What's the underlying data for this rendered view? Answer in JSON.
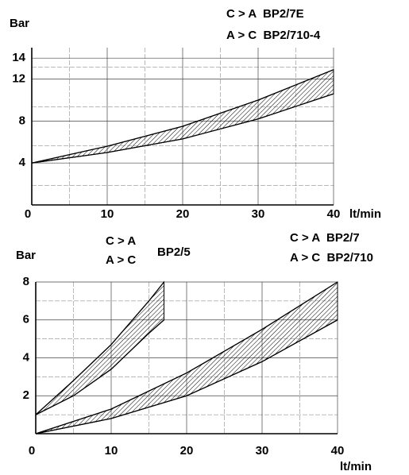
{
  "chart_data": [
    {
      "type": "band",
      "y_label": "Bar",
      "x_label": "lt/min",
      "annotations": [
        "C > A  BP2/7E",
        "A > C  BP2/710-4"
      ],
      "xlim": [
        0,
        40
      ],
      "xticks": [
        0,
        10,
        20,
        30,
        40
      ],
      "ylim": [
        0,
        15
      ],
      "yticks": [
        4,
        8,
        12,
        14
      ],
      "grid": true,
      "bands": [
        {
          "x": [
            0,
            10,
            20,
            30,
            40
          ],
          "upper": [
            4,
            5.6,
            7.5,
            10,
            12.9
          ],
          "lower": [
            4,
            5,
            6.3,
            8.2,
            10.6
          ]
        }
      ]
    },
    {
      "type": "band",
      "y_label": "Bar",
      "x_label": "lt/min",
      "annotations": [
        "C > A",
        "A > C",
        "BP2/5",
        "C > A  BP2/7",
        "A > C  BP2/710"
      ],
      "xlim": [
        0,
        40
      ],
      "xticks": [
        0,
        10,
        20,
        30,
        40
      ],
      "ylim": [
        0,
        8
      ],
      "yticks": [
        2,
        4,
        6,
        8
      ],
      "grid": true,
      "bands": [
        {
          "x": [
            0,
            5,
            10,
            15,
            17
          ],
          "upper": [
            1,
            2.8,
            4.7,
            7,
            8
          ],
          "lower": [
            1,
            2,
            3.4,
            5.3,
            6
          ]
        },
        {
          "x": [
            0,
            10,
            20,
            30,
            40
          ],
          "upper": [
            0,
            1.3,
            3.2,
            5.5,
            8
          ],
          "lower": [
            0,
            0.8,
            2,
            3.8,
            6
          ]
        }
      ]
    }
  ]
}
